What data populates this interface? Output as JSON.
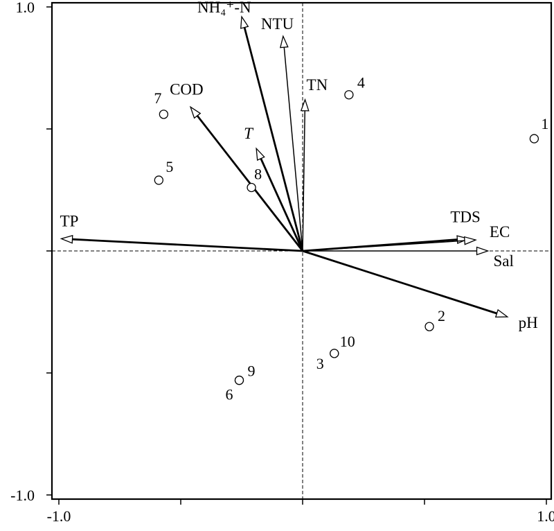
{
  "chart_data": {
    "type": "scatter",
    "subtype": "ordination-biplot",
    "xlim": [
      -1.0,
      1.0
    ],
    "ylim": [
      -1.0,
      1.0
    ],
    "x_ticks": [
      -1.0,
      -0.5,
      0,
      0.5,
      1.0
    ],
    "y_ticks": [
      -1.0,
      -0.5,
      0,
      0.5,
      1.0
    ],
    "x_tick_labels": [
      "-1.0",
      "",
      "",
      "",
      "1.0"
    ],
    "y_tick_labels": [
      "-1.0",
      "",
      "",
      "",
      "1.0"
    ],
    "zero_lines": true,
    "vectors": [
      {
        "label": "NH₄⁺-N",
        "x": -0.25,
        "y": 0.96,
        "italic": false,
        "heavy": true
      },
      {
        "label": "NTU",
        "x": -0.08,
        "y": 0.88,
        "italic": false,
        "heavy": false
      },
      {
        "label": "TN",
        "x": 0.01,
        "y": 0.62,
        "italic": false,
        "heavy": false
      },
      {
        "label": "COD",
        "x": -0.46,
        "y": 0.59,
        "italic": false,
        "heavy": true
      },
      {
        "label": "T",
        "x": -0.19,
        "y": 0.42,
        "italic": true,
        "heavy": true
      },
      {
        "label": "TP",
        "x": -0.99,
        "y": 0.05,
        "italic": false,
        "heavy": true
      },
      {
        "label": "TDS",
        "x": 0.68,
        "y": 0.05,
        "italic": false,
        "heavy": true
      },
      {
        "label": "EC",
        "x": 0.71,
        "y": 0.045,
        "italic": false,
        "heavy": false
      },
      {
        "label": "Sal",
        "x": 0.76,
        "y": 0.0,
        "italic": false,
        "heavy": false
      },
      {
        "label": "pH",
        "x": 0.84,
        "y": -0.27,
        "italic": false,
        "heavy": true
      }
    ],
    "sites": [
      {
        "label": "1",
        "x": 0.95,
        "y": 0.46
      },
      {
        "label": "2",
        "x": 0.52,
        "y": -0.31
      },
      {
        "label": "3",
        "x": 0.13,
        "y": -0.42
      },
      {
        "label": "4",
        "x": 0.19,
        "y": 0.64
      },
      {
        "label": "5",
        "x": -0.59,
        "y": 0.29
      },
      {
        "label": "6",
        "x": -0.26,
        "y": -0.53
      },
      {
        "label": "7",
        "x": -0.57,
        "y": 0.56
      },
      {
        "label": "8",
        "x": -0.21,
        "y": 0.26
      },
      {
        "label": "9",
        "x": -0.26,
        "y": -0.53
      },
      {
        "label": "10",
        "x": 0.13,
        "y": -0.42
      }
    ]
  }
}
